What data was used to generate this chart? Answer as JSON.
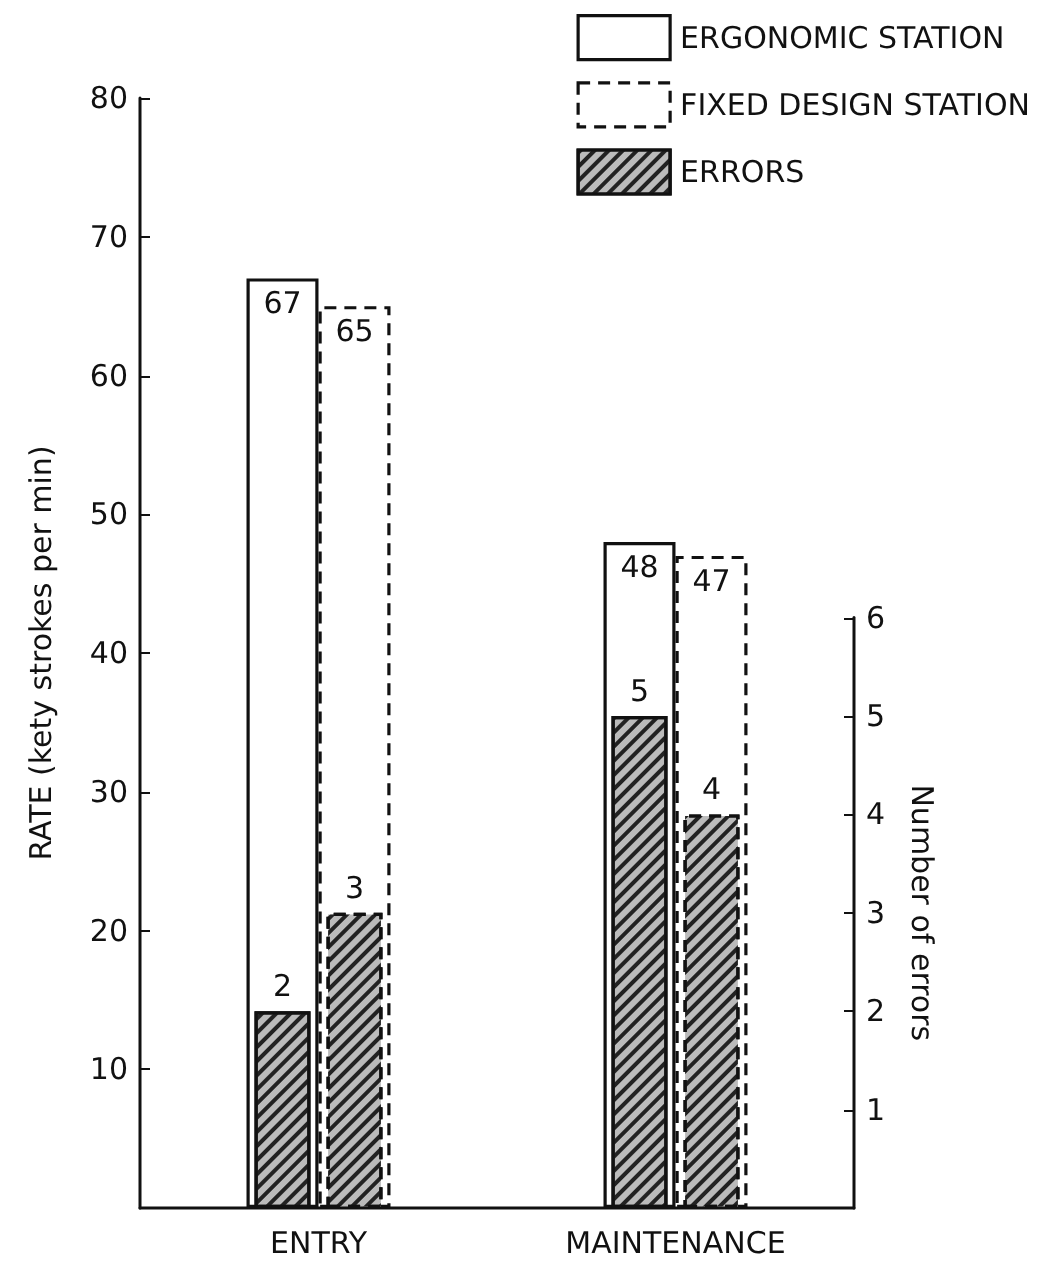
{
  "chart_data": {
    "type": "bar",
    "categories": [
      "ENTRY",
      "MAINTENANCE"
    ],
    "ylabel": "RATE (kety strokes per min)",
    "y2label": "Number of errors",
    "ylim": [
      0,
      80
    ],
    "yticks": [
      10,
      20,
      30,
      40,
      50,
      60,
      70,
      80
    ],
    "y2lim": [
      0,
      6
    ],
    "y2ticks": [
      1,
      2,
      3,
      4,
      5,
      6
    ],
    "legend": "top right",
    "data_labels": true,
    "series": [
      {
        "name": "ERGONOMIC STATION",
        "color": "#ffffff",
        "line_style": "solid",
        "values": [
          67,
          48
        ]
      },
      {
        "name": "FIXED DESIGN STATION",
        "color": "#ffffff",
        "line_style": "dashed",
        "values": [
          65,
          47
        ]
      },
      {
        "name": "ERRORS",
        "color": "#bbbbbb",
        "line_style": "solid",
        "axis": "y2",
        "values": [
          2,
          5
        ]
      },
      {
        "color": "#bbbbbb",
        "line_style": "dashed",
        "axis": "y2",
        "values": [
          3,
          4
        ]
      }
    ]
  }
}
